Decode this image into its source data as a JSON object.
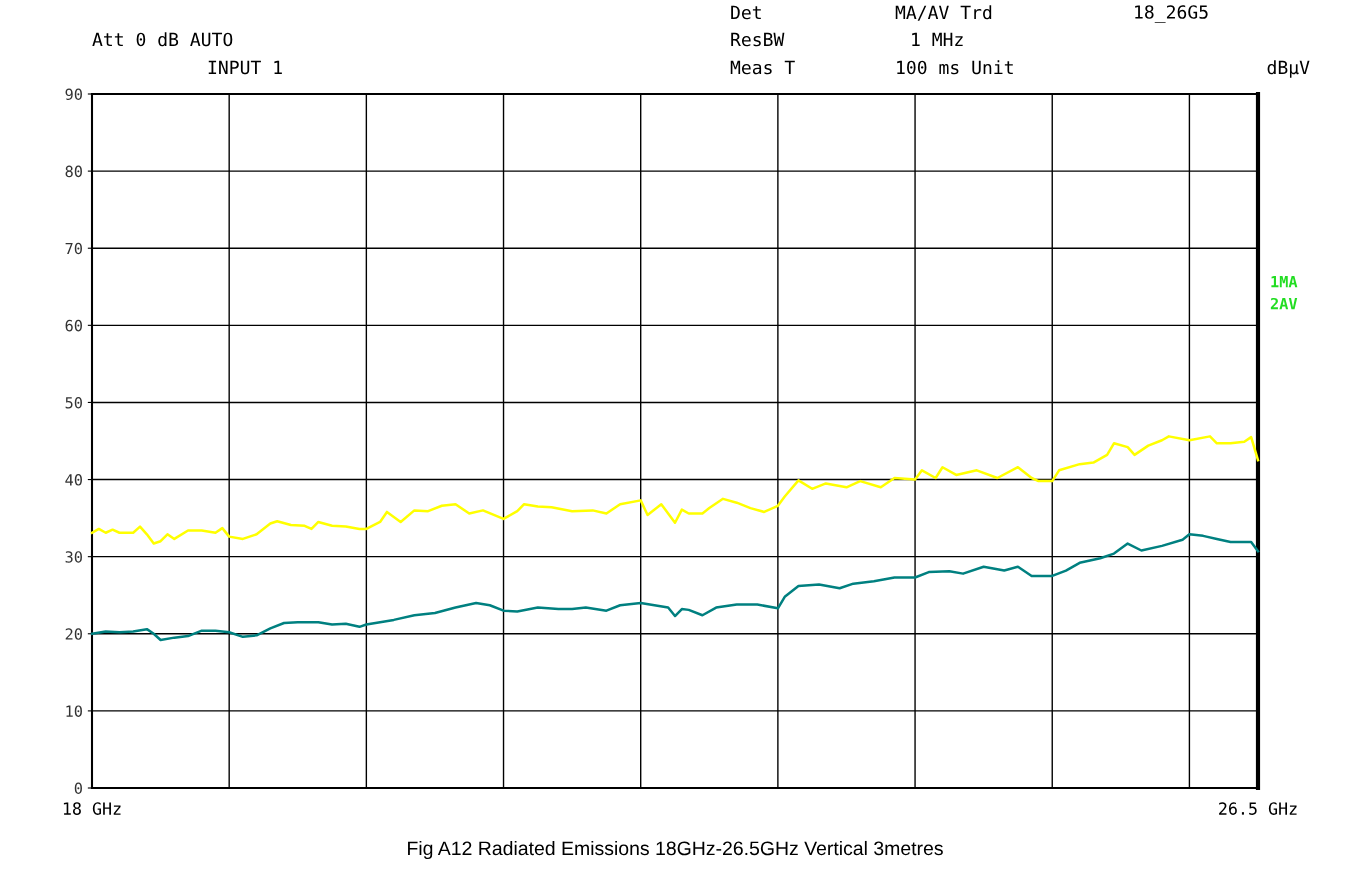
{
  "chart_data": {
    "type": "line",
    "x": [
      18.0,
      18.05,
      18.1,
      18.15,
      18.2,
      18.3,
      18.35,
      18.4,
      18.45,
      18.5,
      18.55,
      18.6,
      18.7,
      18.8,
      18.9,
      18.95,
      19.0,
      19.1,
      19.2,
      19.3,
      19.35,
      19.45,
      19.55,
      19.6,
      19.65,
      19.75,
      19.85,
      19.95,
      20.0,
      20.1,
      20.15,
      20.25,
      20.35,
      20.45,
      20.55,
      20.65,
      20.75,
      20.85,
      21.0,
      21.1,
      21.15,
      21.25,
      21.35,
      21.5,
      21.65,
      21.75,
      21.85,
      22.0,
      22.05,
      22.15,
      22.25,
      22.3,
      22.35,
      22.45,
      22.5,
      22.6,
      22.7,
      22.8,
      22.9,
      23.0,
      23.05,
      23.15,
      23.25,
      23.35,
      23.5,
      23.6,
      23.75,
      23.85,
      24.0,
      24.05,
      24.15,
      24.2,
      24.3,
      24.45,
      24.6,
      24.75,
      24.85,
      24.9,
      25.0,
      25.05,
      25.2,
      25.3,
      25.4,
      25.45,
      25.55,
      25.6,
      25.7,
      25.8,
      25.85,
      26.0,
      26.15,
      26.2,
      26.3,
      26.4,
      26.45,
      26.5
    ],
    "series": [
      {
        "color": "#ffff00",
        "values": [
          33.1,
          33.6,
          33.1,
          33.5,
          33.1,
          33.1,
          33.9,
          32.9,
          31.7,
          32.0,
          32.9,
          32.3,
          33.4,
          33.4,
          33.1,
          33.7,
          32.6,
          32.3,
          32.9,
          34.3,
          34.6,
          34.1,
          34.0,
          33.6,
          34.5,
          34.0,
          33.9,
          33.6,
          33.6,
          34.5,
          35.8,
          34.5,
          36.0,
          35.9,
          36.6,
          36.8,
          35.6,
          36.0,
          34.9,
          35.9,
          36.8,
          36.5,
          36.4,
          35.9,
          36.0,
          35.6,
          36.8,
          37.3,
          35.4,
          36.8,
          34.4,
          36.1,
          35.6,
          35.6,
          36.3,
          37.5,
          37.0,
          36.3,
          35.8,
          36.6,
          37.8,
          39.9,
          38.8,
          39.5,
          39.0,
          39.8,
          39.0,
          40.2,
          40.0,
          41.2,
          40.2,
          41.6,
          40.6,
          41.2,
          40.2,
          41.6,
          40.2,
          39.8,
          39.8,
          41.2,
          42.0,
          42.2,
          43.2,
          44.7,
          44.2,
          43.2,
          44.4,
          45.1,
          45.6,
          45.1,
          45.6,
          44.7,
          44.7,
          44.9,
          45.5,
          42.5
        ]
      },
      {
        "color": "#008080",
        "x": [
          18.0,
          18.1,
          18.2,
          18.3,
          18.4,
          18.45,
          18.5,
          18.6,
          18.7,
          18.8,
          18.9,
          18.95,
          19.0,
          19.1,
          19.2,
          19.3,
          19.4,
          19.5,
          19.65,
          19.75,
          19.85,
          19.95,
          20.0,
          20.1,
          20.2,
          20.35,
          20.5,
          20.65,
          20.8,
          20.9,
          21.0,
          21.1,
          21.25,
          21.4,
          21.5,
          21.6,
          21.75,
          21.85,
          22.0,
          22.1,
          22.2,
          22.25,
          22.3,
          22.35,
          22.45,
          22.55,
          22.7,
          22.85,
          23.0,
          23.05,
          23.15,
          23.3,
          23.45,
          23.55,
          23.7,
          23.85,
          24.0,
          24.1,
          24.25,
          24.35,
          24.5,
          24.65,
          24.75,
          24.85,
          25.0,
          25.1,
          25.2,
          25.35,
          25.45,
          25.55,
          25.65,
          25.8,
          25.95,
          26.0,
          26.1,
          26.2,
          26.3,
          26.45,
          26.5
        ],
        "values": [
          20.0,
          20.3,
          20.2,
          20.3,
          20.6,
          20.0,
          19.2,
          19.5,
          19.7,
          20.4,
          20.4,
          20.3,
          20.2,
          19.6,
          19.8,
          20.7,
          21.4,
          21.5,
          21.5,
          21.2,
          21.3,
          20.9,
          21.2,
          21.5,
          21.8,
          22.4,
          22.7,
          23.4,
          24.0,
          23.7,
          23.0,
          22.9,
          23.4,
          23.2,
          23.2,
          23.4,
          23.0,
          23.7,
          24.0,
          23.7,
          23.4,
          22.3,
          23.2,
          23.1,
          22.4,
          23.4,
          23.8,
          23.8,
          23.3,
          24.8,
          26.2,
          26.4,
          25.9,
          26.5,
          26.8,
          27.3,
          27.3,
          28.0,
          28.1,
          27.8,
          28.7,
          28.2,
          28.7,
          27.5,
          27.5,
          28.2,
          29.2,
          29.8,
          30.4,
          31.7,
          30.8,
          31.4,
          32.2,
          32.9,
          32.7,
          32.3,
          31.9,
          31.9,
          30.7
        ]
      }
    ],
    "xlim": [
      18,
      26.5
    ],
    "xticks": [
      {
        "value": 18,
        "label": "18 GHz"
      },
      {
        "value": 19,
        "label": null
      },
      {
        "value": 20,
        "label": null
      },
      {
        "value": 21,
        "label": null
      },
      {
        "value": 22,
        "label": null
      },
      {
        "value": 23,
        "label": null
      },
      {
        "value": 24,
        "label": null
      },
      {
        "value": 25,
        "label": null
      },
      {
        "value": 26,
        "label": null
      },
      {
        "value": 26.5,
        "label": "26.5 GHz"
      }
    ],
    "ylim": [
      0,
      90
    ],
    "yticks": [
      0,
      10,
      20,
      30,
      40,
      50,
      60,
      70,
      80,
      90
    ],
    "grid": true,
    "line_style": "solid",
    "annotations": [
      "Att 0 dB AUTO",
      "INPUT 1",
      "Det",
      "MA/AV Trd",
      "18_26G5",
      "ResBW",
      "1 MHz",
      "Meas T",
      "100 ms Unit",
      "dBµV",
      "1MA",
      "2AV",
      "Fig A12 Radiated Emissions 18GHz-26.5GHz Vertical 3metres"
    ]
  }
}
